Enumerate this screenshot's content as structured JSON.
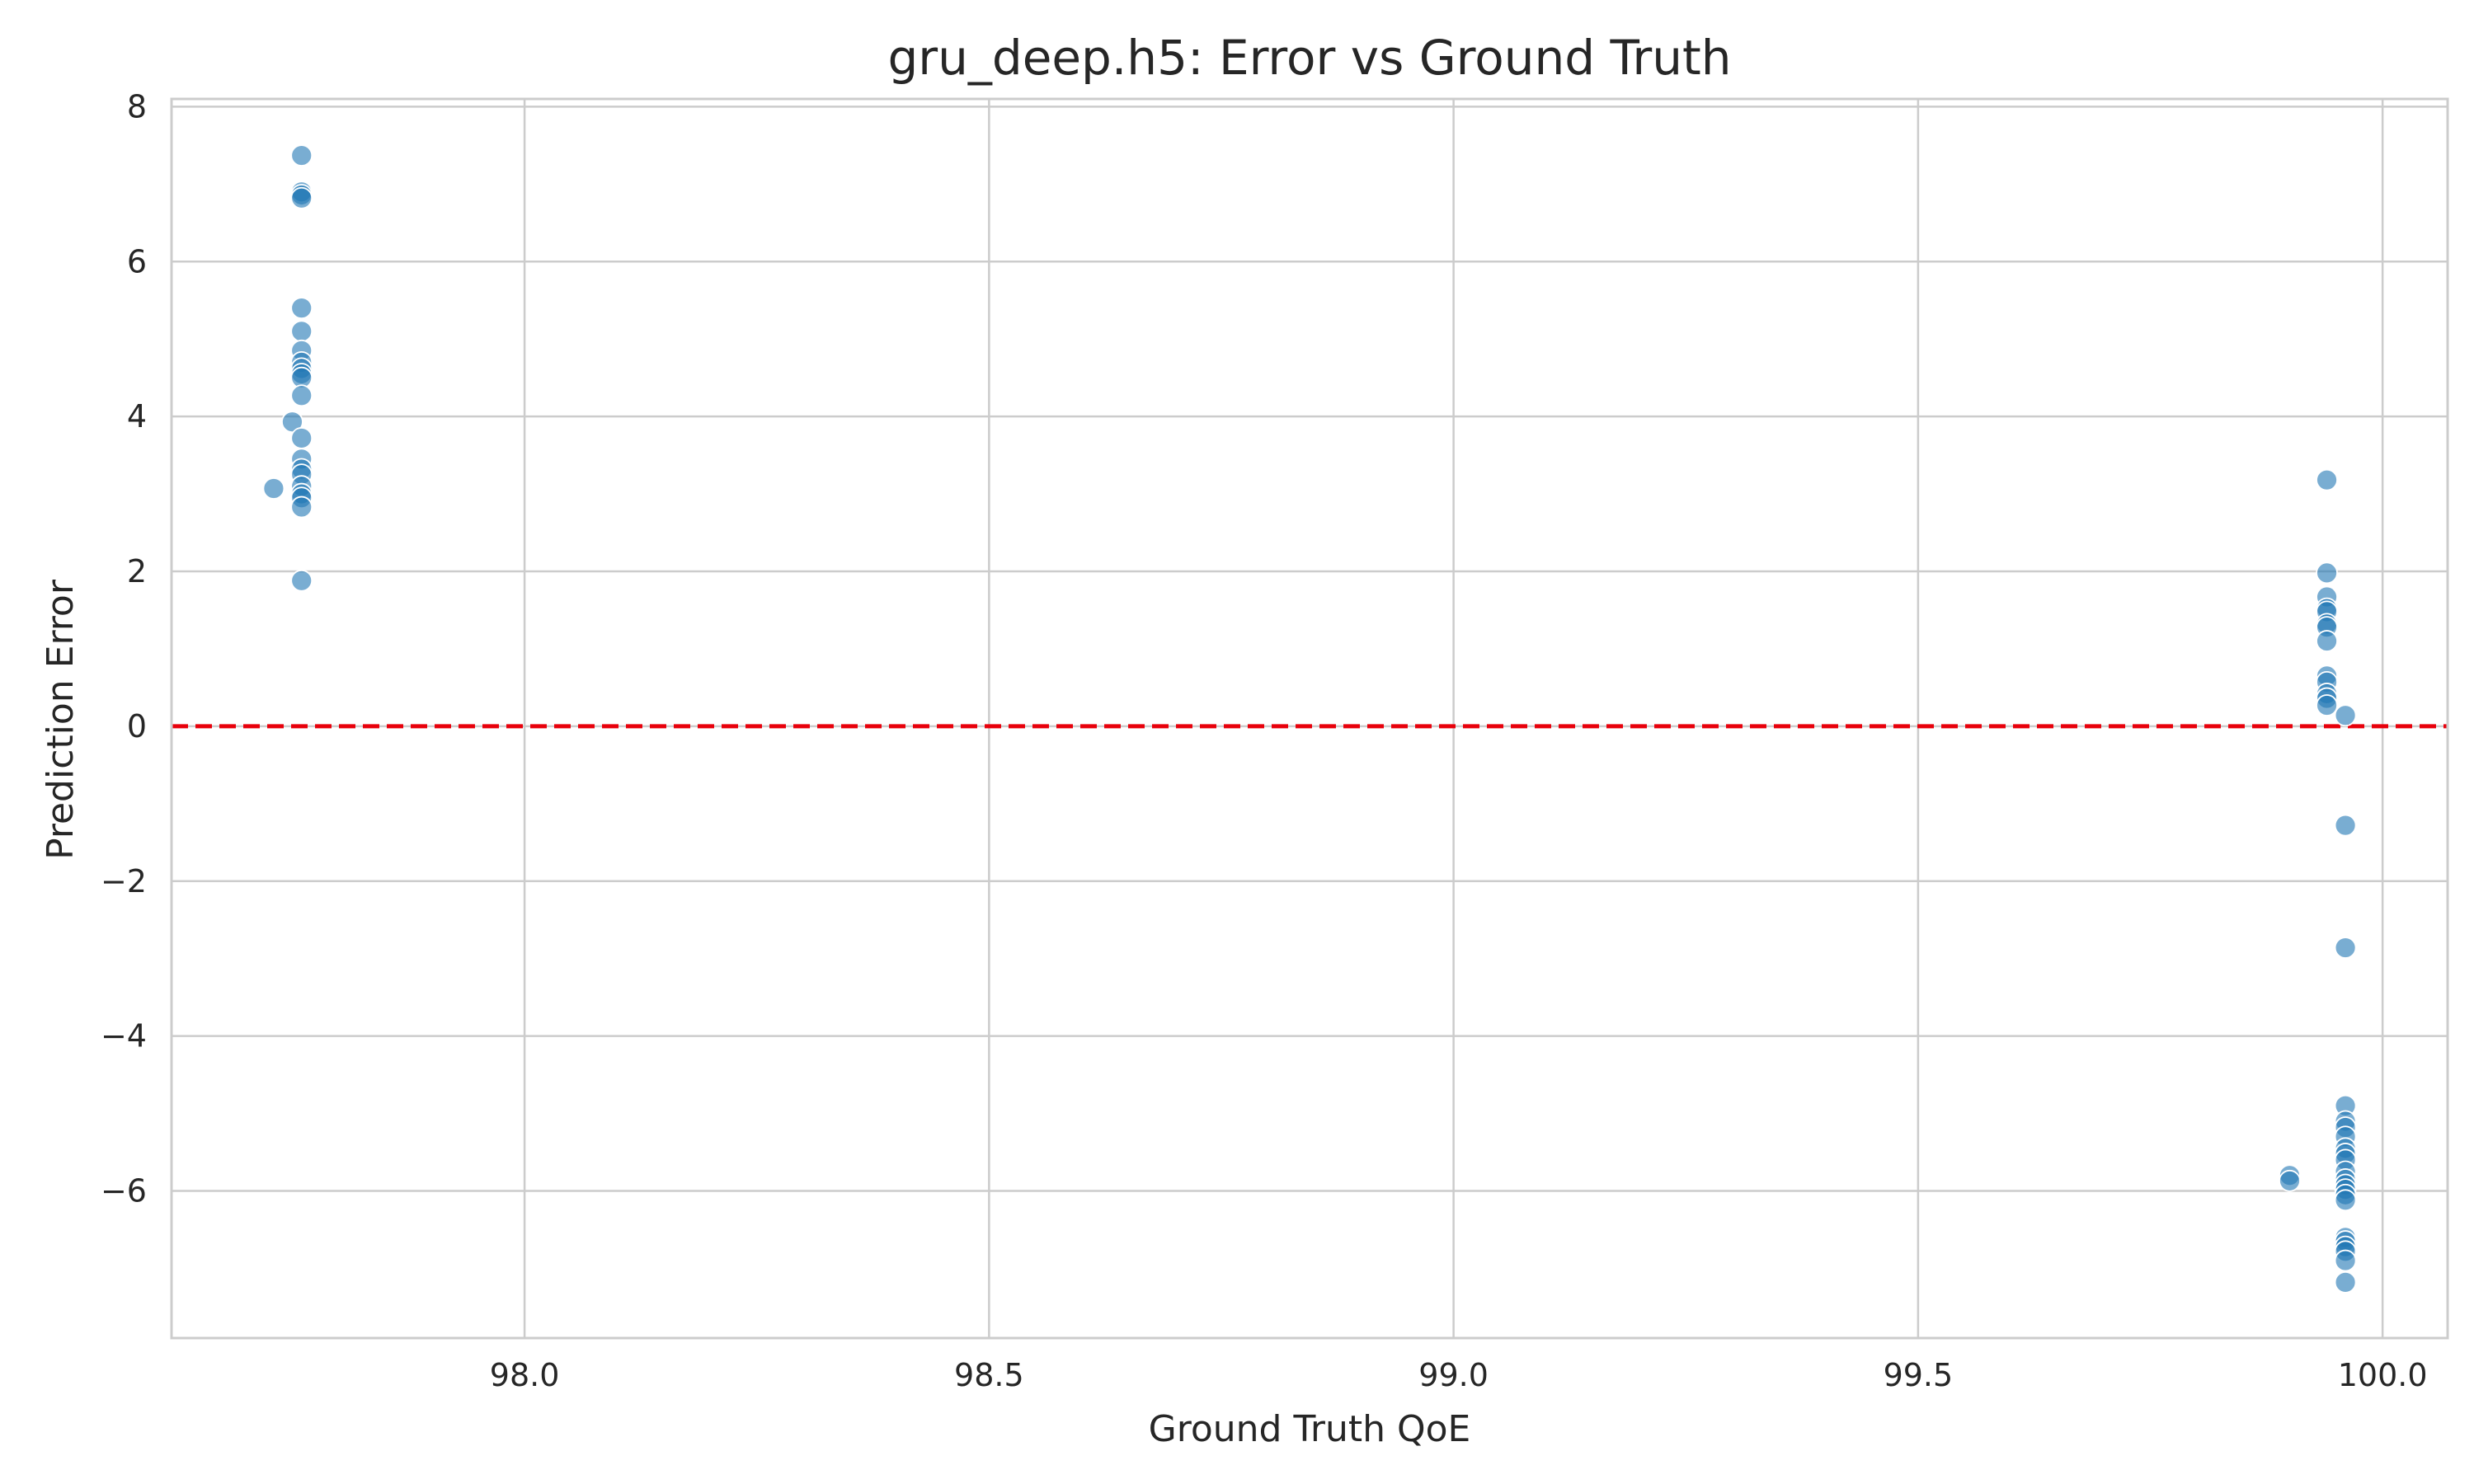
{
  "chart_data": {
    "type": "scatter",
    "title": "gru_deep.h5: Error vs Ground Truth",
    "xlabel": "Ground Truth QoE",
    "ylabel": "Prediction Error",
    "xlim": [
      97.62,
      100.07
    ],
    "ylim": [
      -7.9,
      8.1
    ],
    "xticks": [
      98.0,
      98.5,
      99.0,
      99.5,
      100.0
    ],
    "xtick_labels": [
      "98.0",
      "98.5",
      "99.0",
      "99.5",
      "100.0"
    ],
    "yticks": [
      -6,
      -4,
      -2,
      0,
      2,
      4,
      6,
      8
    ],
    "ytick_labels": [
      "−6",
      "−4",
      "−2",
      "0",
      "2",
      "4",
      "6",
      "8"
    ],
    "grid": true,
    "reference_line": {
      "y": 0,
      "style": "dashed",
      "color": "#e8000b"
    },
    "point_color": "#1f77b4",
    "point_alpha": 0.6,
    "points": [
      {
        "x": 97.76,
        "y": 7.37
      },
      {
        "x": 97.76,
        "y": 6.9
      },
      {
        "x": 97.76,
        "y": 6.86
      },
      {
        "x": 97.76,
        "y": 6.82
      },
      {
        "x": 97.76,
        "y": 5.4
      },
      {
        "x": 97.76,
        "y": 5.1
      },
      {
        "x": 97.76,
        "y": 4.85
      },
      {
        "x": 97.76,
        "y": 4.7
      },
      {
        "x": 97.76,
        "y": 4.62
      },
      {
        "x": 97.76,
        "y": 4.55
      },
      {
        "x": 97.76,
        "y": 4.5
      },
      {
        "x": 97.76,
        "y": 4.27
      },
      {
        "x": 97.75,
        "y": 3.93
      },
      {
        "x": 97.76,
        "y": 3.72
      },
      {
        "x": 97.76,
        "y": 3.45
      },
      {
        "x": 97.76,
        "y": 3.32
      },
      {
        "x": 97.76,
        "y": 3.25
      },
      {
        "x": 97.76,
        "y": 3.1
      },
      {
        "x": 97.73,
        "y": 3.07
      },
      {
        "x": 97.76,
        "y": 3.0
      },
      {
        "x": 97.76,
        "y": 2.95
      },
      {
        "x": 97.76,
        "y": 2.83
      },
      {
        "x": 97.76,
        "y": 1.88
      },
      {
        "x": 99.94,
        "y": 3.18
      },
      {
        "x": 99.94,
        "y": 1.98
      },
      {
        "x": 99.94,
        "y": 1.67
      },
      {
        "x": 99.94,
        "y": 1.52
      },
      {
        "x": 99.94,
        "y": 1.48
      },
      {
        "x": 99.94,
        "y": 1.32
      },
      {
        "x": 99.94,
        "y": 1.28
      },
      {
        "x": 99.94,
        "y": 1.1
      },
      {
        "x": 99.94,
        "y": 0.65
      },
      {
        "x": 99.94,
        "y": 0.57
      },
      {
        "x": 99.94,
        "y": 0.42
      },
      {
        "x": 99.94,
        "y": 0.36
      },
      {
        "x": 99.94,
        "y": 0.27
      },
      {
        "x": 99.96,
        "y": 0.14
      },
      {
        "x": 99.96,
        "y": -1.28
      },
      {
        "x": 99.96,
        "y": -2.86
      },
      {
        "x": 99.96,
        "y": -4.9
      },
      {
        "x": 99.96,
        "y": -5.1
      },
      {
        "x": 99.96,
        "y": -5.18
      },
      {
        "x": 99.96,
        "y": -5.3
      },
      {
        "x": 99.96,
        "y": -5.45
      },
      {
        "x": 99.96,
        "y": -5.52
      },
      {
        "x": 99.96,
        "y": -5.6
      },
      {
        "x": 99.96,
        "y": -5.75
      },
      {
        "x": 99.96,
        "y": -5.85
      },
      {
        "x": 99.96,
        "y": -5.92
      },
      {
        "x": 99.96,
        "y": -5.98
      },
      {
        "x": 99.96,
        "y": -6.05
      },
      {
        "x": 99.96,
        "y": -6.12
      },
      {
        "x": 99.96,
        "y": -6.6
      },
      {
        "x": 99.96,
        "y": -6.65
      },
      {
        "x": 99.96,
        "y": -6.72
      },
      {
        "x": 99.96,
        "y": -6.78
      },
      {
        "x": 99.96,
        "y": -6.9
      },
      {
        "x": 99.96,
        "y": -7.18
      },
      {
        "x": 99.9,
        "y": -5.8
      },
      {
        "x": 99.9,
        "y": -5.87
      }
    ]
  }
}
